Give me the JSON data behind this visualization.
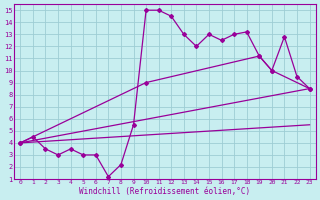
{
  "xlabel": "Windchill (Refroidissement éolien,°C)",
  "bg_color": "#c8eef0",
  "grid_color": "#9ecdd4",
  "line_color": "#990099",
  "xlim": [
    -0.5,
    23.5
  ],
  "ylim": [
    1,
    15.5
  ],
  "xticks": [
    0,
    1,
    2,
    3,
    4,
    5,
    6,
    7,
    8,
    9,
    10,
    11,
    12,
    13,
    14,
    15,
    16,
    17,
    18,
    19,
    20,
    21,
    22,
    23
  ],
  "yticks": [
    1,
    2,
    3,
    4,
    5,
    6,
    7,
    8,
    9,
    10,
    11,
    12,
    13,
    14,
    15
  ],
  "line1_x": [
    0,
    1,
    2,
    3,
    4,
    5,
    6,
    7,
    8,
    9,
    10,
    11,
    12,
    13,
    14,
    15,
    16,
    17,
    18,
    19,
    20,
    21,
    22,
    23
  ],
  "line1_y": [
    4.0,
    4.5,
    3.5,
    3.0,
    3.5,
    3.0,
    3.0,
    1.2,
    2.2,
    5.5,
    15.0,
    15.0,
    14.5,
    13.0,
    12.0,
    13.0,
    12.5,
    13.0,
    13.2,
    11.2,
    10.0,
    12.8,
    9.5,
    8.5
  ],
  "line2_x": [
    0,
    10,
    19,
    20,
    23
  ],
  "line2_y": [
    4.0,
    9.0,
    11.2,
    10.0,
    8.5
  ],
  "line3_x": [
    0,
    23
  ],
  "line3_y": [
    4.0,
    8.5
  ],
  "line4_x": [
    0,
    23
  ],
  "line4_y": [
    4.0,
    5.5
  ]
}
